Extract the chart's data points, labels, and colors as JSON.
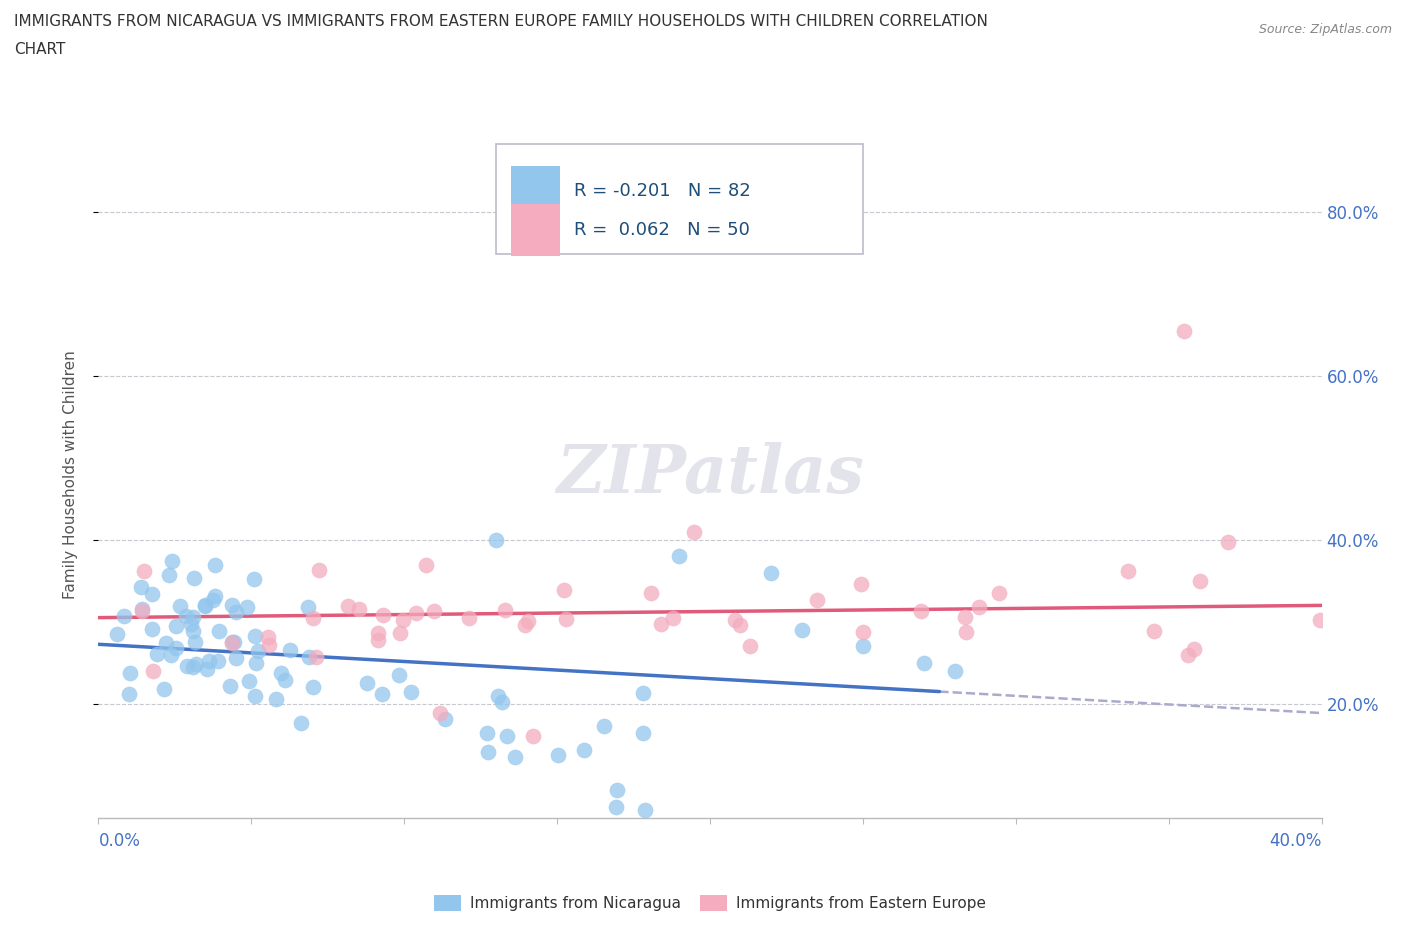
{
  "title_line1": "IMMIGRANTS FROM NICARAGUA VS IMMIGRANTS FROM EASTERN EUROPE FAMILY HOUSEHOLDS WITH CHILDREN CORRELATION",
  "title_line2": "CHART",
  "source": "Source: ZipAtlas.com",
  "ylabel": "Family Households with Children",
  "color_nicaragua": "#93C6ED",
  "color_eastern_europe": "#F4ACBE",
  "color_line_nicaragua": "#4472C4",
  "color_line_eastern_europe": "#E05A7A",
  "color_line_dash": "#AAAACC",
  "xlim": [
    0.0,
    0.4
  ],
  "ylim": [
    0.06,
    0.9
  ],
  "yticks": [
    0.2,
    0.4,
    0.6,
    0.8
  ],
  "ytick_labels": [
    "20.0%",
    "40.0%",
    "60.0%",
    "80.0%"
  ],
  "watermark": "ZIPatlas",
  "legend1_R": "-0.201",
  "legend1_N": "82",
  "legend2_R": "0.062",
  "legend2_N": "50"
}
